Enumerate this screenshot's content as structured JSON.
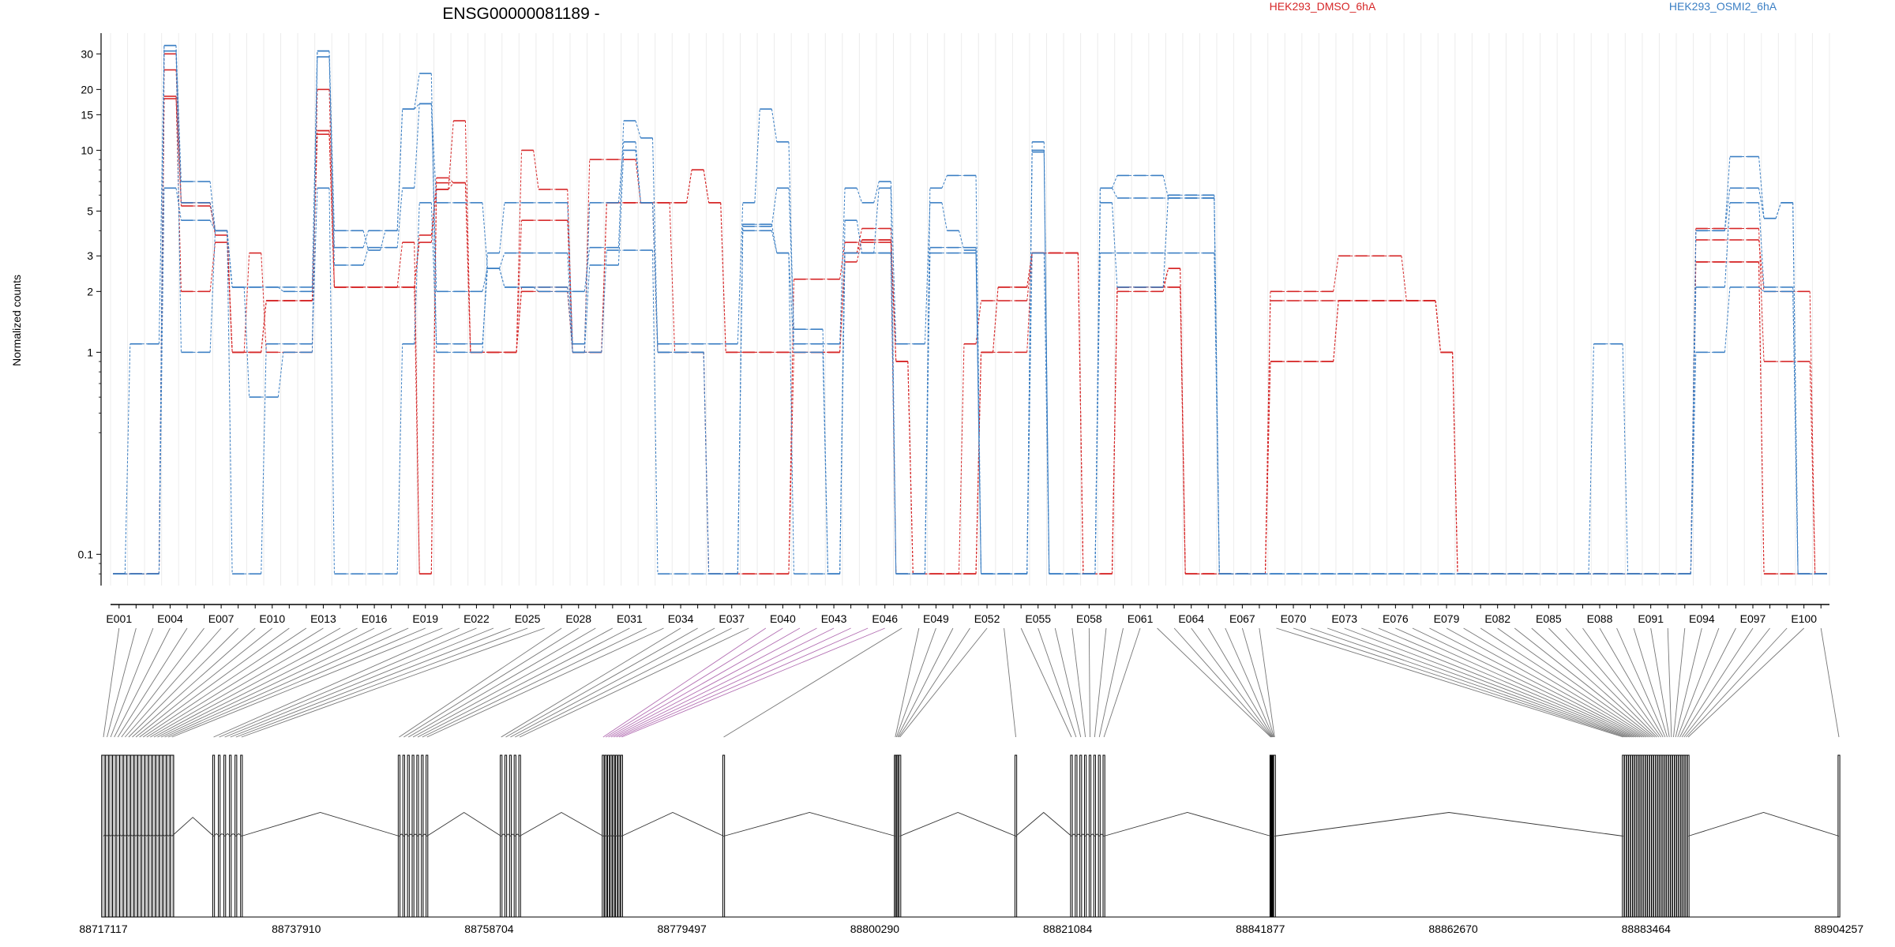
{
  "chart_data": {
    "type": "line",
    "title": "ENSG00000081189 -",
    "xlabel": "",
    "ylabel": "Normalized counts",
    "yscale": "log",
    "ylim": [
      0.07,
      38
    ],
    "yticks": [
      {
        "value": 0.1,
        "label": "0.1"
      },
      {
        "value": 1,
        "label": "1"
      },
      {
        "value": 2,
        "label": "2"
      },
      {
        "value": 3,
        "label": "3"
      },
      {
        "value": 5,
        "label": "5"
      },
      {
        "value": 10,
        "label": "10"
      },
      {
        "value": 15,
        "label": "15"
      },
      {
        "value": 20,
        "label": "20"
      },
      {
        "value": 30,
        "label": "30"
      }
    ],
    "grid": "vertical",
    "legend": [
      {
        "label": "HEK293_DMSO_6hA",
        "color": "#d62728",
        "placement": "top-center-right"
      },
      {
        "label": "HEK293_OSMI2_6hA",
        "color": "#3b7fc4",
        "placement": "top-right"
      }
    ],
    "exon_count": 101,
    "exon_labels": [
      "E001",
      "E004",
      "E007",
      "E010",
      "E013",
      "E016",
      "E019",
      "E022",
      "E025",
      "E028",
      "E031",
      "E034",
      "E037",
      "E040",
      "E043",
      "E046",
      "E049",
      "E052",
      "E055",
      "E058",
      "E061",
      "E064",
      "E067",
      "E070",
      "E073",
      "E076",
      "E079",
      "E082",
      "E085",
      "E088",
      "E091",
      "E094",
      "E097",
      "E100"
    ],
    "exon_label_indices": [
      1,
      4,
      7,
      10,
      13,
      16,
      19,
      22,
      25,
      28,
      31,
      34,
      37,
      40,
      43,
      46,
      49,
      52,
      55,
      58,
      61,
      64,
      67,
      70,
      73,
      76,
      79,
      82,
      85,
      88,
      91,
      94,
      97,
      100
    ],
    "genomic_start": 88717117,
    "genomic_end": 88904257,
    "genomic_ticks": [
      {
        "value": 88717117,
        "label": "88717117"
      },
      {
        "value": 88737910,
        "label": "88737910"
      },
      {
        "value": 88758704,
        "label": "88758704"
      },
      {
        "value": 88779497,
        "label": "88779497"
      },
      {
        "value": 88800290,
        "label": "88800290"
      },
      {
        "value": 88821084,
        "label": "88821084"
      },
      {
        "value": 88841877,
        "label": "88841877"
      },
      {
        "value": 88862670,
        "label": "88862670"
      },
      {
        "value": 88883464,
        "label": "88883464"
      },
      {
        "value": 88904257,
        "label": "88904257"
      }
    ],
    "series": [
      {
        "name": "HEK293_DMSO_6hA",
        "group": "DMSO",
        "color": "#d62728",
        "values": [
          0.08,
          0.08,
          0.08,
          18.0,
          5.5,
          5.5,
          3.8,
          1.0,
          1.0,
          1.8,
          1.8,
          1.8,
          12.0,
          2.1,
          2.1,
          2.1,
          2.1,
          2.1,
          3.8,
          6.9,
          6.9,
          1.0,
          1.0,
          1.0,
          2.0,
          2.0,
          2.0,
          1.0,
          1.0,
          5.5,
          5.5,
          5.5,
          5.5,
          5.5,
          8.0,
          5.5,
          1.0,
          1.0,
          1.0,
          1.0,
          1.0,
          1.0,
          1.0,
          3.1,
          3.6,
          3.6,
          0.9,
          0.08,
          0.08,
          0.08,
          0.08,
          1.0,
          1.0,
          1.0,
          3.1,
          3.1,
          3.1,
          0.08,
          0.08,
          2.0,
          2.0,
          2.0,
          2.6,
          0.08,
          0.08,
          0.08,
          0.08,
          0.08,
          0.9,
          0.9,
          0.9,
          0.9,
          1.8,
          1.8,
          1.8,
          1.8,
          1.8,
          1.8,
          1.0,
          0.08,
          0.08,
          0.08,
          0.08,
          0.08,
          0.08,
          0.08,
          0.08,
          0.08,
          0.08,
          0.08,
          0.08,
          0.08,
          0.08,
          2.8,
          2.8,
          2.8,
          2.8,
          0.08,
          0.08,
          0.08,
          0.08
        ]
      },
      {
        "name": "HEK293_DMSO_6hA",
        "group": "DMSO",
        "color": "#d62728",
        "values": [
          0.08,
          0.08,
          0.08,
          25.0,
          5.3,
          5.3,
          4.0,
          1.0,
          3.1,
          1.0,
          1.0,
          1.0,
          20.0,
          2.1,
          2.1,
          2.1,
          2.1,
          2.1,
          0.08,
          6.4,
          14.0,
          1.0,
          1.0,
          1.0,
          10.0,
          6.4,
          6.4,
          1.0,
          9.0,
          9.0,
          9.0,
          5.5,
          1.0,
          1.0,
          1.0,
          0.08,
          0.08,
          0.08,
          0.08,
          0.08,
          2.3,
          2.3,
          2.3,
          3.5,
          3.5,
          3.5,
          0.08,
          0.08,
          0.08,
          0.08,
          0.08,
          1.0,
          2.1,
          2.1,
          3.1,
          3.1,
          3.1,
          0.08,
          0.08,
          2.1,
          2.1,
          2.1,
          2.1,
          0.08,
          0.08,
          0.08,
          0.08,
          0.08,
          2.0,
          2.0,
          2.0,
          2.0,
          3.0,
          3.0,
          3.0,
          3.0,
          1.8,
          1.8,
          1.0,
          0.08,
          0.08,
          0.08,
          0.08,
          0.08,
          0.08,
          0.08,
          0.08,
          0.08,
          0.08,
          0.08,
          0.08,
          0.08,
          0.08,
          3.6,
          3.6,
          3.6,
          3.6,
          2.0,
          2.0,
          2.0,
          0.08
        ]
      },
      {
        "name": "HEK293_DMSO_6hA",
        "group": "DMSO",
        "color": "#d62728",
        "values": [
          0.08,
          0.08,
          0.08,
          18.5,
          2.0,
          2.0,
          3.5,
          1.0,
          1.0,
          1.8,
          1.8,
          1.8,
          12.5,
          2.1,
          2.1,
          2.1,
          2.1,
          3.5,
          0.08,
          7.3,
          6.9,
          1.0,
          1.0,
          1.0,
          2.1,
          2.1,
          2.1,
          1.0,
          1.0,
          5.5,
          5.5,
          5.5,
          5.5,
          1.0,
          1.0,
          0.08,
          0.08,
          0.08,
          0.08,
          0.08,
          1.0,
          1.0,
          1.0,
          2.8,
          3.6,
          3.6,
          0.9,
          0.08,
          0.08,
          0.08,
          1.1,
          1.8,
          1.8,
          1.8,
          3.1,
          3.1,
          3.1,
          0.08,
          0.08,
          2.1,
          2.1,
          2.1,
          2.1,
          0.08,
          0.08,
          0.08,
          0.08,
          0.08,
          1.8,
          1.8,
          1.8,
          1.8,
          1.8,
          1.8,
          1.8,
          1.8,
          1.8,
          1.8,
          1.0,
          0.08,
          0.08,
          0.08,
          0.08,
          0.08,
          0.08,
          0.08,
          0.08,
          0.08,
          0.08,
          0.08,
          0.08,
          0.08,
          0.08,
          4.1,
          4.1,
          4.1,
          4.1,
          0.9,
          0.9,
          0.9,
          0.08
        ]
      },
      {
        "name": "HEK293_DMSO_6hA",
        "group": "DMSO",
        "color": "#d62728",
        "values": [
          0.08,
          0.08,
          0.08,
          30.0,
          5.5,
          5.5,
          4.0,
          1.0,
          1.0,
          1.8,
          1.8,
          1.8,
          12.5,
          2.1,
          2.1,
          2.1,
          2.1,
          2.1,
          3.5,
          6.4,
          6.9,
          1.0,
          1.0,
          1.0,
          4.5,
          4.5,
          4.5,
          1.0,
          1.0,
          5.5,
          5.5,
          5.5,
          5.5,
          5.5,
          8.0,
          5.5,
          1.0,
          1.0,
          1.0,
          1.0,
          1.0,
          1.0,
          1.0,
          3.1,
          4.1,
          4.1,
          0.9,
          0.08,
          0.08,
          0.08,
          0.08,
          1.0,
          2.1,
          2.1,
          3.1,
          3.1,
          3.1,
          0.08,
          0.08,
          2.1,
          2.1,
          2.1,
          2.6,
          0.08,
          0.08,
          0.08,
          0.08,
          0.08,
          0.9,
          0.9,
          0.9,
          0.9,
          1.8,
          1.8,
          1.8,
          1.8,
          1.8,
          1.8,
          1.0,
          0.08,
          0.08,
          0.08,
          0.08,
          0.08,
          0.08,
          0.08,
          0.08,
          0.08,
          0.08,
          0.08,
          0.08,
          0.08,
          0.08,
          2.8,
          2.8,
          2.8,
          2.8,
          0.08,
          0.08,
          0.08,
          0.08
        ]
      },
      {
        "name": "HEK293_OSMI2_6hA",
        "group": "OSMI2",
        "color": "#3b7fc4",
        "values": [
          0.08,
          1.1,
          1.1,
          33.0,
          7.0,
          7.0,
          4.0,
          2.1,
          2.1,
          2.1,
          2.1,
          2.1,
          31.0,
          4.0,
          4.0,
          3.2,
          4.0,
          16.0,
          24.0,
          1.0,
          1.0,
          1.0,
          3.1,
          5.5,
          5.5,
          5.5,
          5.5,
          1.1,
          5.5,
          5.5,
          11.0,
          5.5,
          1.1,
          1.1,
          1.1,
          1.1,
          1.1,
          5.5,
          16.0,
          11.0,
          1.1,
          1.1,
          1.1,
          6.5,
          5.5,
          7.0,
          1.1,
          1.1,
          5.5,
          4.0,
          3.2,
          0.08,
          0.08,
          0.08,
          9.8,
          0.08,
          0.08,
          0.08,
          6.5,
          7.5,
          7.5,
          7.5,
          5.8,
          5.8,
          5.8,
          0.08,
          0.08,
          0.08,
          0.08,
          0.08,
          0.08,
          0.08,
          0.08,
          0.08,
          0.08,
          0.08,
          0.08,
          0.08,
          0.08,
          0.08,
          0.08,
          0.08,
          0.08,
          0.08,
          0.08,
          0.08,
          0.08,
          1.1,
          1.1,
          0.08,
          0.08,
          0.08,
          0.08,
          4.0,
          4.0,
          9.3,
          9.3,
          4.6,
          5.5,
          0.08,
          0.08
        ]
      },
      {
        "name": "HEK293_OSMI2_6hA",
        "group": "OSMI2",
        "color": "#3b7fc4",
        "values": [
          0.08,
          0.08,
          0.08,
          33.0,
          1.0,
          1.0,
          4.0,
          2.1,
          0.6,
          0.6,
          1.0,
          1.0,
          29.0,
          2.7,
          2.7,
          3.3,
          3.3,
          6.5,
          17.0,
          2.0,
          2.0,
          2.0,
          2.6,
          2.1,
          2.1,
          2.0,
          2.0,
          2.0,
          3.3,
          3.3,
          14.0,
          11.5,
          1.0,
          1.0,
          1.0,
          0.08,
          0.08,
          4.2,
          4.2,
          6.5,
          1.3,
          1.3,
          0.08,
          4.5,
          3.1,
          3.1,
          0.08,
          0.08,
          3.3,
          3.3,
          3.3,
          0.08,
          0.08,
          0.08,
          11.0,
          0.08,
          0.08,
          0.08,
          5.5,
          2.1,
          2.1,
          2.1,
          6.0,
          6.0,
          6.0,
          0.08,
          0.08,
          0.08,
          0.08,
          0.08,
          0.08,
          0.08,
          0.08,
          0.08,
          0.08,
          0.08,
          0.08,
          0.08,
          0.08,
          0.08,
          0.08,
          0.08,
          0.08,
          0.08,
          0.08,
          0.08,
          0.08,
          0.08,
          0.08,
          0.08,
          0.08,
          0.08,
          0.08,
          2.1,
          2.1,
          5.5,
          5.5,
          2.1,
          2.1,
          0.08,
          0.08
        ]
      },
      {
        "name": "HEK293_OSMI2_6hA",
        "group": "OSMI2",
        "color": "#3b7fc4",
        "values": [
          0.08,
          0.08,
          0.08,
          6.5,
          4.5,
          4.5,
          4.0,
          0.08,
          0.08,
          1.1,
          1.1,
          1.1,
          6.5,
          0.08,
          0.08,
          0.08,
          0.08,
          1.1,
          5.5,
          1.1,
          1.1,
          1.1,
          2.6,
          3.1,
          3.1,
          3.1,
          3.1,
          1.0,
          1.0,
          3.2,
          3.2,
          3.2,
          0.08,
          0.08,
          0.08,
          0.08,
          0.08,
          4.0,
          4.0,
          3.1,
          0.08,
          0.08,
          0.08,
          3.1,
          3.1,
          3.1,
          0.08,
          0.08,
          3.1,
          3.1,
          3.1,
          0.08,
          0.08,
          0.08,
          3.1,
          0.08,
          0.08,
          0.08,
          3.1,
          3.1,
          3.1,
          3.1,
          3.1,
          3.1,
          3.1,
          0.08,
          0.08,
          0.08,
          0.08,
          0.08,
          0.08,
          0.08,
          0.08,
          0.08,
          0.08,
          0.08,
          0.08,
          0.08,
          0.08,
          0.08,
          0.08,
          0.08,
          0.08,
          0.08,
          0.08,
          0.08,
          0.08,
          0.08,
          0.08,
          0.08,
          0.08,
          0.08,
          0.08,
          1.0,
          1.0,
          2.1,
          2.1,
          2.0,
          2.0,
          0.08,
          0.08
        ]
      },
      {
        "name": "HEK293_OSMI2_6hA",
        "group": "OSMI2",
        "color": "#3b7fc4",
        "values": [
          0.08,
          0.08,
          0.08,
          31.0,
          5.5,
          5.5,
          4.0,
          2.1,
          2.1,
          2.1,
          2.0,
          2.0,
          31.0,
          3.3,
          3.3,
          4.0,
          4.0,
          16.0,
          17.0,
          5.5,
          5.5,
          5.5,
          2.6,
          2.1,
          2.1,
          2.1,
          2.1,
          1.0,
          2.7,
          2.7,
          10.0,
          5.5,
          1.0,
          1.0,
          1.0,
          0.08,
          0.08,
          4.3,
          4.3,
          3.1,
          1.0,
          1.0,
          0.08,
          3.1,
          3.1,
          6.5,
          0.08,
          0.08,
          6.5,
          7.5,
          7.5,
          0.08,
          0.08,
          0.08,
          10.0,
          0.08,
          0.08,
          0.08,
          6.5,
          5.8,
          5.8,
          5.8,
          5.8,
          5.8,
          5.8,
          0.08,
          0.08,
          0.08,
          0.08,
          0.08,
          0.08,
          0.08,
          0.08,
          0.08,
          0.08,
          0.08,
          0.08,
          0.08,
          0.08,
          0.08,
          0.08,
          0.08,
          0.08,
          0.08,
          0.08,
          0.08,
          0.08,
          0.08,
          0.08,
          0.08,
          0.08,
          0.08,
          0.08,
          4.0,
          4.0,
          6.5,
          6.5,
          4.6,
          5.5,
          0.08,
          0.08
        ]
      }
    ]
  }
}
